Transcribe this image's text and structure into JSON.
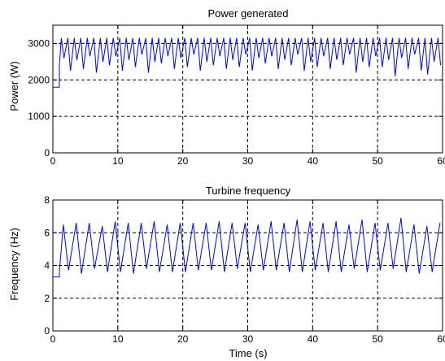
{
  "chart_data": [
    {
      "type": "line",
      "title": "Power generated",
      "xlabel": "",
      "ylabel": "Power (W)",
      "xlim": [
        0,
        60
      ],
      "ylim": [
        0,
        3500
      ],
      "xticks": [
        0,
        10,
        20,
        30,
        40,
        50,
        60
      ],
      "yticks": [
        0,
        1000,
        2000,
        3000
      ],
      "grid": true,
      "line_color": "#0000ff",
      "series": [
        {
          "initial": {
            "x": [
              0,
              1.0,
              1.0
            ],
            "y": [
              1800,
              1800,
              2400
            ]
          },
          "oscillation": {
            "start": 1.0,
            "end": 60,
            "period": 1.0,
            "peak": 3150,
            "troughs": [
              2600,
              2250,
              2550,
              2300,
              2650,
              2200,
              2500,
              2400,
              2650,
              2250,
              2550,
              2350,
              2700,
              2200,
              2500,
              2450,
              2650,
              2300,
              2600,
              2350,
              2700,
              2250,
              2500,
              2400,
              2650,
              2300,
              2550,
              2350,
              2700,
              2250,
              2600,
              2450,
              2650,
              2300,
              2550,
              2400,
              2700,
              2250,
              2500,
              2350,
              2650,
              2300,
              2550,
              2400,
              2700,
              2200,
              2500,
              2350,
              2650,
              2350,
              2550,
              2100,
              2600,
              2300,
              2700,
              2250,
              2150,
              2500,
              2400,
              2650
            ]
          }
        }
      ]
    },
    {
      "type": "line",
      "title": "Turbine frequency",
      "xlabel": "Time (s)",
      "ylabel": "Frequency (Hz)",
      "xlim": [
        0,
        60
      ],
      "ylim": [
        0,
        8
      ],
      "xticks": [
        0,
        10,
        20,
        30,
        40,
        50,
        60
      ],
      "yticks": [
        0,
        2,
        4,
        6,
        8
      ],
      "grid": true,
      "line_color": "#0000ff",
      "series": [
        {
          "initial": {
            "x": [
              0,
              1.0,
              1.0
            ],
            "y": [
              3.3,
              3.3,
              3.6
            ]
          },
          "oscillation": {
            "start": 1.0,
            "end": 60,
            "period": 2.0,
            "peaks": [
              6.5,
              6.6,
              6.6,
              6.4,
              6.7,
              6.6,
              6.6,
              6.7,
              6.5,
              6.6,
              6.6,
              6.6,
              6.7,
              6.6,
              6.6,
              6.5,
              6.7,
              6.6,
              6.8,
              6.7,
              6.6,
              6.7,
              6.5,
              6.8,
              6.6,
              6.6,
              6.9,
              6.5,
              6.4,
              6.6
            ],
            "troughs": [
              3.7,
              3.5,
              3.8,
              3.6,
              3.6,
              3.5,
              3.8,
              3.6,
              3.6,
              3.6,
              3.7,
              3.7,
              3.6,
              3.8,
              3.6,
              3.7,
              3.7,
              3.6,
              3.6,
              3.7,
              3.6,
              3.6,
              3.8,
              3.6,
              3.7,
              3.8,
              3.6,
              3.5,
              3.6,
              3.7
            ]
          }
        }
      ]
    }
  ]
}
